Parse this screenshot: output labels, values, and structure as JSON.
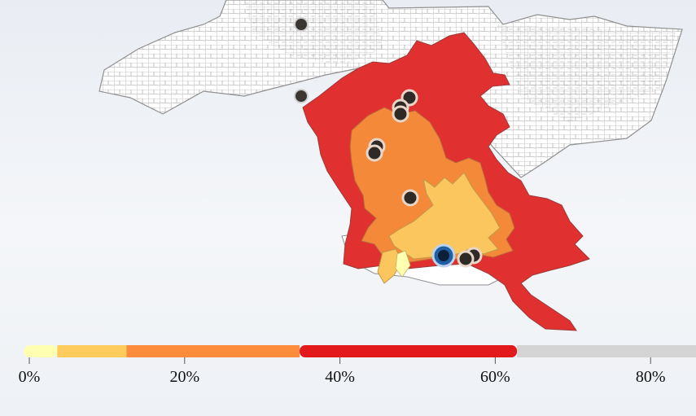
{
  "legend": {
    "ticks": [
      {
        "label": "0%",
        "value": 0
      },
      {
        "label": "20%",
        "value": 20
      },
      {
        "label": "40%",
        "value": 40
      },
      {
        "label": "60%",
        "value": 60
      },
      {
        "label": "80%",
        "value": 80
      }
    ],
    "bands": [
      {
        "from": 0,
        "to": 3.6,
        "color": "#ffffb2"
      },
      {
        "from": 3.6,
        "to": 12.5,
        "color": "#fecc5c"
      },
      {
        "from": 12.5,
        "to": 34.8,
        "color": "#fd8d3c"
      },
      {
        "from": 34.8,
        "to": 62.8,
        "color": "#e31a1c"
      },
      {
        "from": 62.8,
        "to": 86,
        "color": "#d4d4d4"
      }
    ]
  },
  "colors": {
    "tract_border": "#9a9a9a",
    "tract_fill": "#ffffff",
    "band_red": "#e03030",
    "band_orange": "#f4893a",
    "band_yellow": "#fbc65e",
    "site_dark": "#2f2a26",
    "site_selected": "#1f5fa6"
  }
}
